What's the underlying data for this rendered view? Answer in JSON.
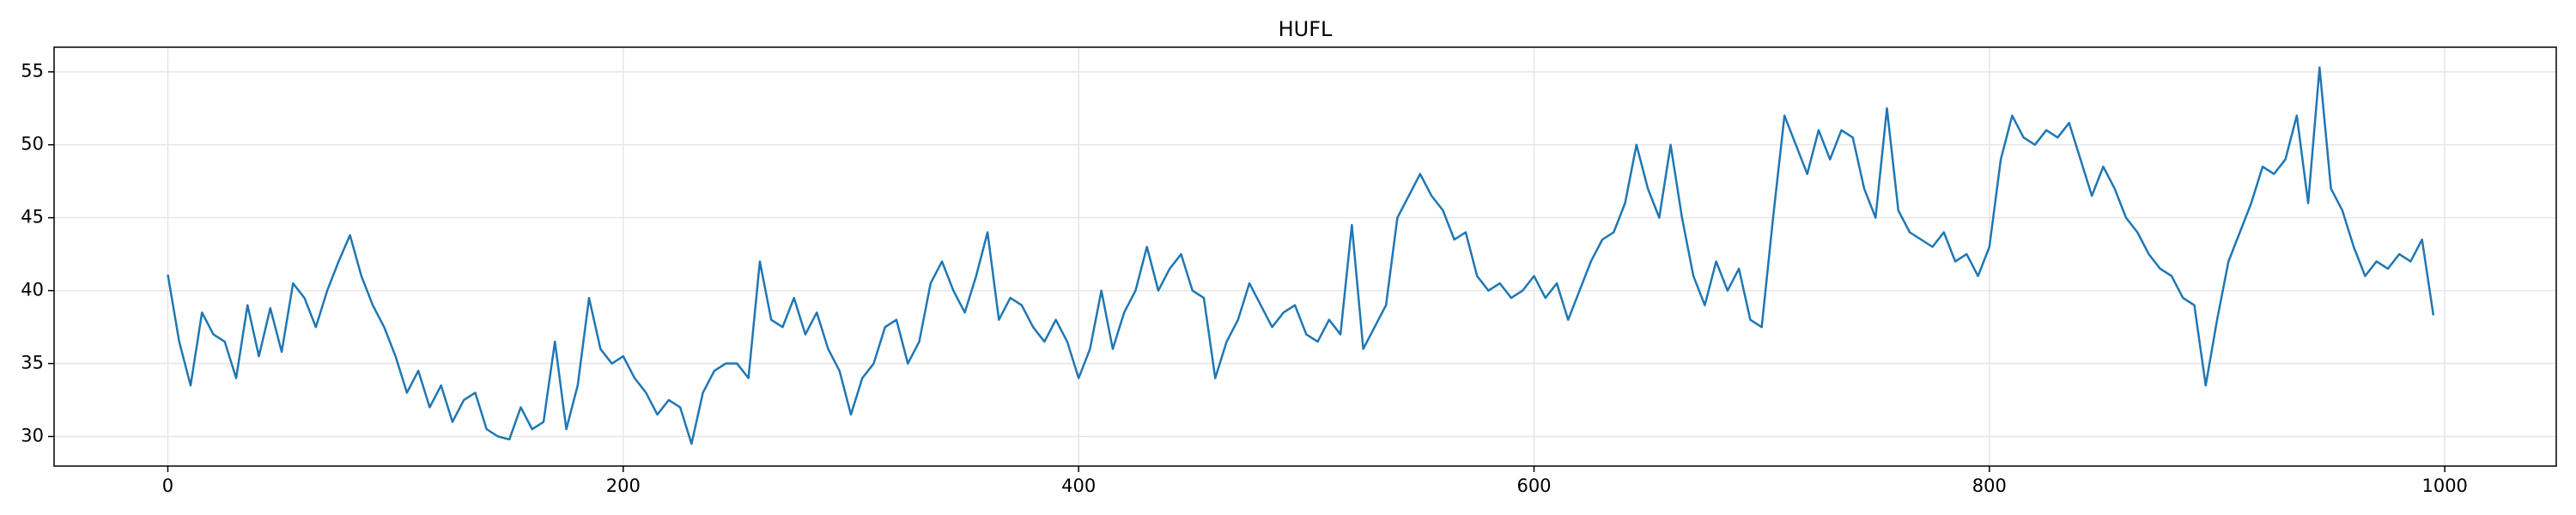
{
  "chart_data": {
    "type": "line",
    "title": "HUFL",
    "color": "#1f77b4",
    "grid": true,
    "xlim": [
      -49.95,
      1048.95
    ],
    "ylim": [
      27.97,
      56.69
    ],
    "xticks": [
      0,
      200,
      400,
      600,
      800,
      1000
    ],
    "yticks": [
      30,
      35,
      40,
      45,
      50,
      55
    ],
    "x": [
      0,
      5,
      10,
      15,
      20,
      25,
      30,
      35,
      40,
      45,
      50,
      55,
      60,
      65,
      70,
      75,
      80,
      85,
      90,
      95,
      100,
      105,
      110,
      115,
      120,
      125,
      130,
      135,
      140,
      145,
      150,
      155,
      160,
      165,
      170,
      175,
      180,
      185,
      190,
      195,
      200,
      205,
      210,
      215,
      220,
      225,
      230,
      235,
      240,
      245,
      250,
      255,
      260,
      265,
      270,
      275,
      280,
      285,
      290,
      295,
      300,
      305,
      310,
      315,
      320,
      325,
      330,
      335,
      340,
      345,
      350,
      355,
      360,
      365,
      370,
      375,
      380,
      385,
      390,
      395,
      400,
      405,
      410,
      415,
      420,
      425,
      430,
      435,
      440,
      445,
      450,
      455,
      460,
      465,
      470,
      475,
      480,
      485,
      490,
      495,
      500,
      505,
      510,
      515,
      520,
      525,
      530,
      535,
      540,
      545,
      550,
      555,
      560,
      565,
      570,
      575,
      580,
      585,
      590,
      595,
      600,
      605,
      610,
      615,
      620,
      625,
      630,
      635,
      640,
      645,
      650,
      655,
      660,
      665,
      670,
      675,
      680,
      685,
      690,
      695,
      700,
      705,
      710,
      715,
      720,
      725,
      730,
      735,
      740,
      745,
      750,
      755,
      760,
      765,
      770,
      775,
      780,
      785,
      790,
      795,
      800,
      805,
      810,
      815,
      820,
      825,
      830,
      835,
      840,
      845,
      850,
      855,
      860,
      865,
      870,
      875,
      880,
      885,
      890,
      895,
      900,
      905,
      910,
      915,
      920,
      925,
      930,
      935,
      940,
      945,
      950,
      955,
      960,
      965,
      970,
      975,
      980,
      985,
      990,
      995
    ],
    "values": [
      41.1,
      36.5,
      33.5,
      38.5,
      37,
      36.5,
      34,
      39,
      35.5,
      38.8,
      35.8,
      40.5,
      39.5,
      37.5,
      40,
      42,
      43.8,
      41,
      39,
      37.5,
      35.5,
      33,
      34.5,
      32,
      33.5,
      31,
      32.5,
      33,
      30.5,
      30,
      29.8,
      32,
      30.5,
      31,
      36.5,
      30.5,
      33.5,
      39.5,
      36,
      35,
      35.5,
      34,
      33,
      31.5,
      32.5,
      32,
      29.5,
      33,
      34.5,
      35,
      35,
      34,
      42,
      38,
      37.5,
      39.5,
      37,
      38.5,
      36,
      34.5,
      31.5,
      34,
      35,
      37.5,
      38,
      35,
      36.5,
      40.5,
      42,
      40,
      38.5,
      41,
      44,
      38,
      39.5,
      39,
      37.5,
      36.5,
      38,
      36.5,
      34,
      36,
      40,
      36,
      38.5,
      40,
      43,
      40,
      41.5,
      42.5,
      40,
      39.5,
      34,
      36.5,
      38,
      40.5,
      39,
      37.5,
      38.5,
      39,
      37,
      36.5,
      38,
      37,
      44.5,
      36,
      37.5,
      39,
      45,
      46.5,
      48,
      46.5,
      45.5,
      43.5,
      44,
      41,
      40,
      40.5,
      39.5,
      40,
      41,
      39.5,
      40.5,
      38,
      40,
      42,
      43.5,
      44,
      46,
      50,
      47,
      45,
      50,
      45,
      41,
      39,
      42,
      40,
      41.5,
      38,
      37.5,
      45,
      52,
      50,
      48,
      51,
      49,
      51,
      50.5,
      47,
      45,
      52.5,
      45.5,
      44,
      43.5,
      43,
      44,
      42,
      42.5,
      41,
      43,
      49,
      52,
      50.5,
      50,
      51,
      50.5,
      51.5,
      49,
      46.5,
      48.5,
      47,
      45,
      44,
      42.5,
      41.5,
      41,
      39.5,
      39,
      33.5,
      38,
      42,
      44,
      46,
      48.5,
      48,
      49,
      52,
      46,
      55.3,
      47,
      45.5,
      43,
      41,
      42,
      41.5,
      42.5,
      42,
      43.5,
      38.3
    ]
  }
}
